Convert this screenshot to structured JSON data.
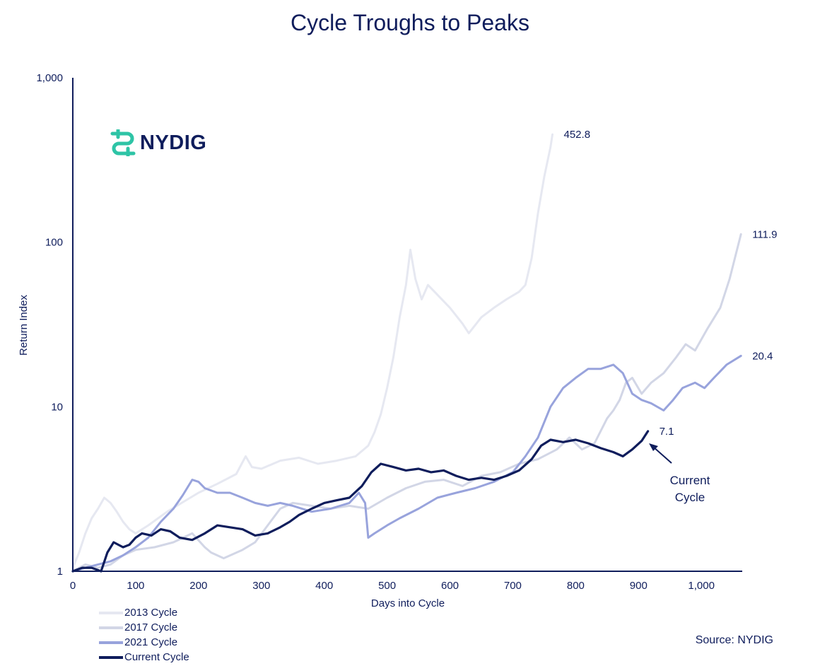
{
  "chart_data": {
    "type": "line",
    "title": "Cycle Troughs to Peaks",
    "xlabel": "Days into Cycle",
    "ylabel": "Return Index",
    "y_scale": "log",
    "xlim": [
      0,
      1065
    ],
    "ylim": [
      1,
      1000
    ],
    "x_ticks": [
      "0",
      "100",
      "200",
      "300",
      "400",
      "500",
      "600",
      "700",
      "800",
      "900",
      "1,000"
    ],
    "x_tick_values": [
      0,
      100,
      200,
      300,
      400,
      500,
      600,
      700,
      800,
      900,
      1000
    ],
    "y_ticks": [
      "1",
      "10",
      "100",
      "1,000"
    ],
    "y_tick_values": [
      1,
      10,
      100,
      1000
    ],
    "grid": false,
    "legend_position": "bottom-left",
    "series": [
      {
        "name": "2013 Cycle",
        "color": "#e6e8f1",
        "end_label": "452.8",
        "points": [
          [
            0,
            1.05
          ],
          [
            10,
            1.3
          ],
          [
            20,
            1.7
          ],
          [
            30,
            2.1
          ],
          [
            40,
            2.4
          ],
          [
            50,
            2.8
          ],
          [
            60,
            2.6
          ],
          [
            70,
            2.3
          ],
          [
            80,
            2.0
          ],
          [
            90,
            1.8
          ],
          [
            100,
            1.7
          ],
          [
            120,
            1.9
          ],
          [
            150,
            2.3
          ],
          [
            180,
            2.7
          ],
          [
            200,
            3.0
          ],
          [
            230,
            3.4
          ],
          [
            260,
            3.9
          ],
          [
            275,
            5.0
          ],
          [
            285,
            4.3
          ],
          [
            300,
            4.2
          ],
          [
            330,
            4.7
          ],
          [
            360,
            4.9
          ],
          [
            390,
            4.5
          ],
          [
            420,
            4.7
          ],
          [
            450,
            5.0
          ],
          [
            470,
            5.8
          ],
          [
            480,
            7.0
          ],
          [
            490,
            9.0
          ],
          [
            500,
            13
          ],
          [
            510,
            20
          ],
          [
            520,
            35
          ],
          [
            530,
            55
          ],
          [
            537,
            90
          ],
          [
            545,
            60
          ],
          [
            555,
            45
          ],
          [
            565,
            55
          ],
          [
            580,
            48
          ],
          [
            600,
            40
          ],
          [
            620,
            32
          ],
          [
            630,
            28
          ],
          [
            650,
            35
          ],
          [
            670,
            40
          ],
          [
            690,
            45
          ],
          [
            710,
            50
          ],
          [
            720,
            55
          ],
          [
            730,
            80
          ],
          [
            740,
            150
          ],
          [
            750,
            250
          ],
          [
            760,
            380
          ],
          [
            763,
            452.8
          ]
        ]
      },
      {
        "name": "2017 Cycle",
        "color": "#d2d6e6",
        "end_label": "111.9",
        "points": [
          [
            0,
            1.0
          ],
          [
            20,
            1.1
          ],
          [
            40,
            1.05
          ],
          [
            60,
            1.1
          ],
          [
            80,
            1.25
          ],
          [
            100,
            1.35
          ],
          [
            130,
            1.4
          ],
          [
            160,
            1.5
          ],
          [
            190,
            1.7
          ],
          [
            210,
            1.4
          ],
          [
            220,
            1.3
          ],
          [
            240,
            1.2
          ],
          [
            270,
            1.35
          ],
          [
            290,
            1.5
          ],
          [
            310,
            1.9
          ],
          [
            330,
            2.4
          ],
          [
            350,
            2.6
          ],
          [
            380,
            2.5
          ],
          [
            410,
            2.4
          ],
          [
            440,
            2.5
          ],
          [
            470,
            2.4
          ],
          [
            500,
            2.8
          ],
          [
            530,
            3.2
          ],
          [
            560,
            3.5
          ],
          [
            590,
            3.6
          ],
          [
            620,
            3.3
          ],
          [
            650,
            3.8
          ],
          [
            680,
            4.0
          ],
          [
            710,
            4.5
          ],
          [
            740,
            4.8
          ],
          [
            770,
            5.5
          ],
          [
            790,
            6.5
          ],
          [
            810,
            5.5
          ],
          [
            830,
            6.0
          ],
          [
            850,
            8.5
          ],
          [
            860,
            9.5
          ],
          [
            870,
            11
          ],
          [
            880,
            14
          ],
          [
            890,
            15
          ],
          [
            905,
            12
          ],
          [
            920,
            14
          ],
          [
            940,
            16
          ],
          [
            960,
            20
          ],
          [
            975,
            24
          ],
          [
            990,
            22
          ],
          [
            1010,
            30
          ],
          [
            1030,
            40
          ],
          [
            1045,
            60
          ],
          [
            1055,
            85
          ],
          [
            1063,
            111.9
          ]
        ]
      },
      {
        "name": "2021 Cycle",
        "color": "#98a3dc",
        "end_label": "20.4",
        "points": [
          [
            0,
            1.0
          ],
          [
            20,
            1.05
          ],
          [
            40,
            1.1
          ],
          [
            60,
            1.15
          ],
          [
            80,
            1.25
          ],
          [
            100,
            1.4
          ],
          [
            120,
            1.6
          ],
          [
            140,
            2.0
          ],
          [
            160,
            2.4
          ],
          [
            175,
            2.9
          ],
          [
            190,
            3.6
          ],
          [
            200,
            3.5
          ],
          [
            210,
            3.2
          ],
          [
            230,
            3.0
          ],
          [
            250,
            3.0
          ],
          [
            270,
            2.8
          ],
          [
            290,
            2.6
          ],
          [
            310,
            2.5
          ],
          [
            330,
            2.6
          ],
          [
            350,
            2.5
          ],
          [
            380,
            2.3
          ],
          [
            410,
            2.4
          ],
          [
            440,
            2.6
          ],
          [
            455,
            3.0
          ],
          [
            465,
            2.6
          ],
          [
            470,
            1.6
          ],
          [
            480,
            1.7
          ],
          [
            500,
            1.9
          ],
          [
            520,
            2.1
          ],
          [
            550,
            2.4
          ],
          [
            580,
            2.8
          ],
          [
            610,
            3.0
          ],
          [
            640,
            3.2
          ],
          [
            670,
            3.5
          ],
          [
            700,
            4.0
          ],
          [
            720,
            5.0
          ],
          [
            740,
            6.5
          ],
          [
            760,
            10
          ],
          [
            780,
            13
          ],
          [
            800,
            15
          ],
          [
            820,
            17
          ],
          [
            840,
            17
          ],
          [
            860,
            18
          ],
          [
            875,
            16
          ],
          [
            890,
            12
          ],
          [
            905,
            11
          ],
          [
            920,
            10.5
          ],
          [
            940,
            9.5
          ],
          [
            955,
            11
          ],
          [
            970,
            13
          ],
          [
            990,
            14
          ],
          [
            1005,
            13
          ],
          [
            1020,
            15
          ],
          [
            1040,
            18
          ],
          [
            1063,
            20.4
          ]
        ]
      },
      {
        "name": "Current Cycle",
        "color": "#0f1d5c",
        "end_label": "7.1",
        "annotation": [
          "Current",
          "Cycle"
        ],
        "points": [
          [
            0,
            1.0
          ],
          [
            15,
            1.05
          ],
          [
            30,
            1.05
          ],
          [
            45,
            1.0
          ],
          [
            55,
            1.3
          ],
          [
            65,
            1.5
          ],
          [
            80,
            1.4
          ],
          [
            90,
            1.45
          ],
          [
            100,
            1.6
          ],
          [
            110,
            1.7
          ],
          [
            125,
            1.65
          ],
          [
            140,
            1.8
          ],
          [
            155,
            1.75
          ],
          [
            170,
            1.6
          ],
          [
            190,
            1.55
          ],
          [
            210,
            1.7
          ],
          [
            230,
            1.9
          ],
          [
            250,
            1.85
          ],
          [
            270,
            1.8
          ],
          [
            290,
            1.65
          ],
          [
            310,
            1.7
          ],
          [
            330,
            1.85
          ],
          [
            345,
            2.0
          ],
          [
            360,
            2.2
          ],
          [
            380,
            2.4
          ],
          [
            400,
            2.6
          ],
          [
            420,
            2.7
          ],
          [
            440,
            2.8
          ],
          [
            460,
            3.3
          ],
          [
            475,
            4.0
          ],
          [
            490,
            4.5
          ],
          [
            510,
            4.3
          ],
          [
            530,
            4.1
          ],
          [
            550,
            4.2
          ],
          [
            570,
            4.0
          ],
          [
            590,
            4.1
          ],
          [
            610,
            3.8
          ],
          [
            630,
            3.6
          ],
          [
            650,
            3.7
          ],
          [
            670,
            3.6
          ],
          [
            690,
            3.8
          ],
          [
            710,
            4.1
          ],
          [
            730,
            4.8
          ],
          [
            745,
            5.8
          ],
          [
            760,
            6.3
          ],
          [
            780,
            6.1
          ],
          [
            800,
            6.3
          ],
          [
            820,
            6.0
          ],
          [
            840,
            5.6
          ],
          [
            860,
            5.3
          ],
          [
            875,
            5.0
          ],
          [
            890,
            5.5
          ],
          [
            905,
            6.2
          ],
          [
            915,
            7.1
          ]
        ]
      }
    ]
  },
  "logo": {
    "text": "NYDIG",
    "color": "#2ec4a6"
  },
  "source": "Source: NYDIG"
}
